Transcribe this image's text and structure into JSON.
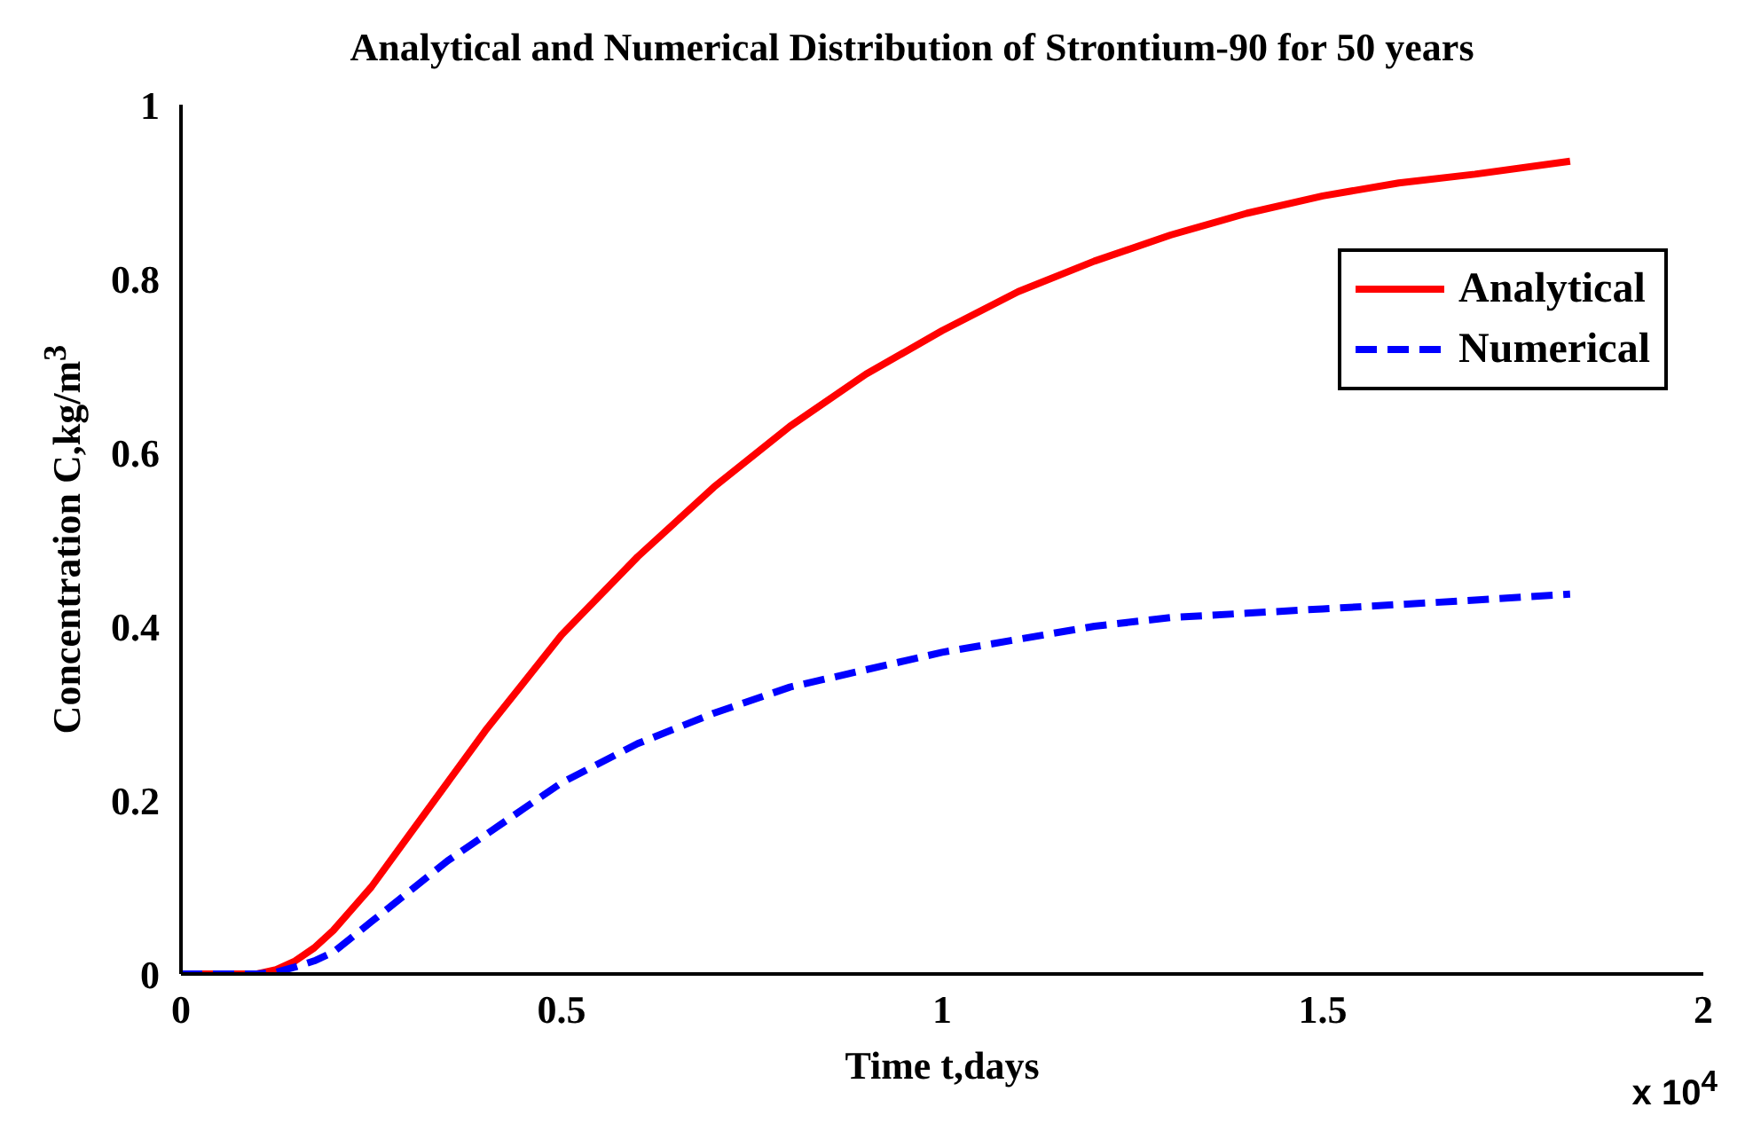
{
  "chart_data": {
    "type": "line",
    "title": "Analytical and Numerical Distribution of Strontium-90 for 50 years",
    "xlabel": "Time t,days",
    "ylabel": "Concentration C,kg/m$^{3}$",
    "annotations": [
      "x 10$^{4}$"
    ],
    "x": [
      0,
      0.05,
      0.1,
      0.125,
      0.15,
      0.175,
      0.2,
      0.25,
      0.3,
      0.35,
      0.4,
      0.45,
      0.5,
      0.6,
      0.7,
      0.8,
      0.9,
      1.0,
      1.1,
      1.2,
      1.3,
      1.4,
      1.5,
      1.6,
      1.7,
      1.825
    ],
    "series": [
      {
        "name": "Analytical",
        "color": "#ff0000",
        "line_style": "solid",
        "values": [
          0,
          0,
          0,
          0.005,
          0.015,
          0.03,
          0.05,
          0.1,
          0.16,
          0.22,
          0.28,
          0.335,
          0.39,
          0.48,
          0.56,
          0.63,
          0.69,
          0.74,
          0.785,
          0.82,
          0.85,
          0.875,
          0.895,
          0.91,
          0.92,
          0.935
        ]
      },
      {
        "name": "Numerical",
        "color": "#0000ff",
        "line_style": "dashed",
        "values": [
          0,
          0,
          0,
          0.002,
          0.008,
          0.015,
          0.025,
          0.06,
          0.095,
          0.13,
          0.16,
          0.19,
          0.22,
          0.265,
          0.3,
          0.33,
          0.35,
          0.37,
          0.385,
          0.4,
          0.41,
          0.415,
          0.42,
          0.425,
          0.43,
          0.437
        ]
      }
    ],
    "xlim": [
      0,
      2
    ],
    "xticks": [
      0,
      0.5,
      1,
      1.5,
      2
    ],
    "ylim": [
      0,
      1
    ],
    "yticks": [
      0,
      0.2,
      0.4,
      0.6,
      0.8,
      1
    ],
    "grid": false,
    "legend": "top right",
    "marker": "none"
  }
}
